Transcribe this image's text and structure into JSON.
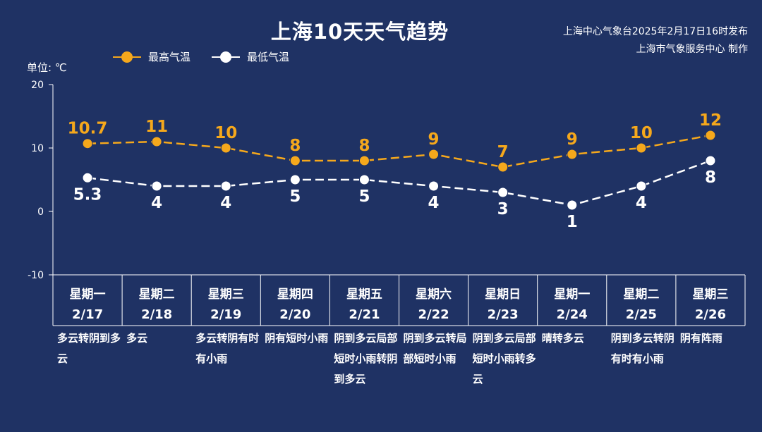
{
  "header": {
    "title": "上海10天天气趋势",
    "source_line1": "上海中心气象台2025年2月17日16时发布",
    "source_line2": "上海市气象服务中心 制作"
  },
  "unit_label": "单位: ℃",
  "colors": {
    "background": "#1f3264",
    "high": "#f5a81c",
    "low": "#ffffff",
    "axis": "#ffffff"
  },
  "chart_data": {
    "type": "line",
    "categories": [
      {
        "weekday": "星期一",
        "date": "2/17"
      },
      {
        "weekday": "星期二",
        "date": "2/18"
      },
      {
        "weekday": "星期三",
        "date": "2/19"
      },
      {
        "weekday": "星期四",
        "date": "2/20"
      },
      {
        "weekday": "星期五",
        "date": "2/21"
      },
      {
        "weekday": "星期六",
        "date": "2/22"
      },
      {
        "weekday": "星期日",
        "date": "2/23"
      },
      {
        "weekday": "星期一",
        "date": "2/24"
      },
      {
        "weekday": "星期二",
        "date": "2/25"
      },
      {
        "weekday": "星期三",
        "date": "2/26"
      }
    ],
    "series": [
      {
        "name": "最高气温",
        "values": [
          10.7,
          11,
          10,
          8,
          8,
          9,
          7,
          9,
          10,
          12
        ],
        "labels": [
          "10.7",
          "11",
          "10",
          "8",
          "8",
          "9",
          "7",
          "9",
          "10",
          "12"
        ],
        "color": "#f5a81c",
        "label_position": "above"
      },
      {
        "name": "最低气温",
        "values": [
          5.3,
          4,
          4,
          5,
          5,
          4,
          3,
          1,
          4,
          8
        ],
        "labels": [
          "5.3",
          "4",
          "4",
          "5",
          "5",
          "4",
          "3",
          "1",
          "4",
          "8"
        ],
        "color": "#ffffff",
        "label_position": "below"
      }
    ],
    "ylim": [
      -10,
      20
    ],
    "yticks": [
      -10,
      0,
      10,
      20
    ],
    "ytick_labels": [
      "-10",
      "0",
      "10",
      "20"
    ],
    "legend_position": "top-left",
    "line_style": "dashed"
  },
  "weather_descriptions": [
    "多云转阴到多云",
    "多云",
    "多云转阴有时有小雨",
    "阴有短时小雨",
    "阴到多云局部短时小雨转阴到多云",
    "阴到多云转局部短时小雨",
    "阴到多云局部短时小雨转多云",
    "晴转多云",
    "阴到多云转阴有时有小雨",
    "阴有阵雨"
  ]
}
